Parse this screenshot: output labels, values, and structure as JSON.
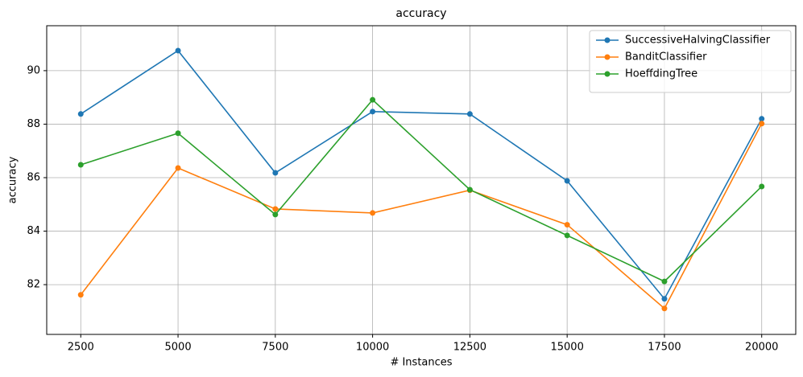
{
  "chart_data": {
    "type": "line",
    "title": "accuracy",
    "x_label": "# Instances",
    "y_label": "accuracy",
    "x": [
      2500,
      5000,
      7500,
      10000,
      12500,
      15000,
      17500,
      20000
    ],
    "series": [
      {
        "name": "SuccessiveHalvingClassifier",
        "color": "#1f77b4",
        "values": [
          88.38,
          90.75,
          86.18,
          88.47,
          88.38,
          85.88,
          81.47,
          88.2
        ]
      },
      {
        "name": "BanditClassifier",
        "color": "#ff7f0e",
        "values": [
          81.62,
          86.36,
          84.83,
          84.68,
          85.53,
          84.24,
          81.11,
          88.02
        ]
      },
      {
        "name": "HoeffdingTree",
        "color": "#2ca02c",
        "values": [
          86.48,
          87.66,
          84.62,
          88.91,
          85.55,
          83.84,
          82.12,
          85.67
        ]
      }
    ],
    "xlim": [
      1625,
      20875
    ],
    "ylim": [
      80.14,
      91.68
    ],
    "xticks": [
      2500,
      5000,
      7500,
      10000,
      12500,
      15000,
      17500,
      20000
    ],
    "yticks": [
      82,
      84,
      86,
      88,
      90
    ],
    "grid": true,
    "legend": "upper-right"
  }
}
